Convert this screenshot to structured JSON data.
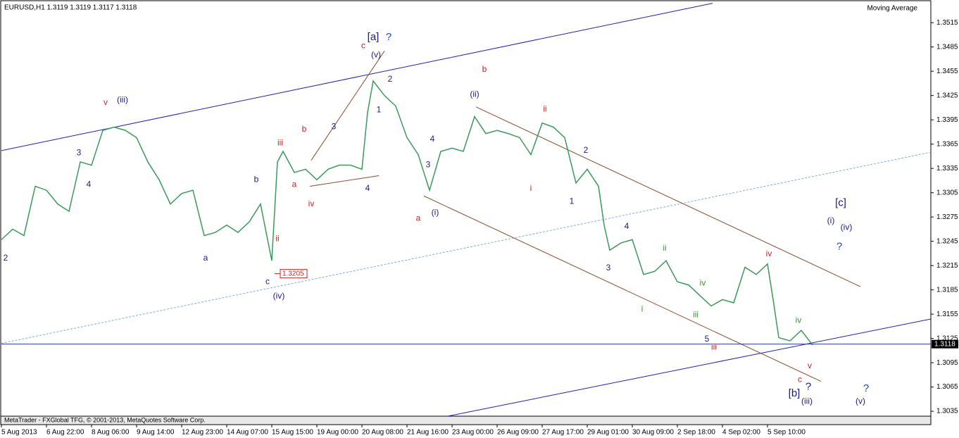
{
  "chart_data": {
    "type": "line",
    "title": "EURUSD,H1  1.3119 1.3119 1.3117 1.3118",
    "indicator": "Moving Average",
    "footer": "MetaTrader - FXGlobal TFG, © 2001-2013, MetaQuotes Software Corp.",
    "color": "#3a9a5a",
    "xlim": [
      0,
      660
    ],
    "ylim": [
      1.3029,
      1.3543
    ],
    "xticks": [
      {
        "value": 0,
        "label": "5 Aug 2013"
      },
      {
        "value": 32,
        "label": "6 Aug 22:00"
      },
      {
        "value": 64,
        "label": "8 Aug 06:00"
      },
      {
        "value": 96,
        "label": "9 Aug 14:00"
      },
      {
        "value": 128,
        "label": "12 Aug 23:00"
      },
      {
        "value": 160,
        "label": "14 Aug 07:00"
      },
      {
        "value": 192,
        "label": "15 Aug 15:00"
      },
      {
        "value": 224,
        "label": "19 Aug 00:00"
      },
      {
        "value": 256,
        "label": "20 Aug 08:00"
      },
      {
        "value": 288,
        "label": "21 Aug 16:00"
      },
      {
        "value": 320,
        "label": "23 Aug 00:00"
      },
      {
        "value": 352,
        "label": "26 Aug 09:00"
      },
      {
        "value": 384,
        "label": "27 Aug 17:00"
      },
      {
        "value": 416,
        "label": "29 Aug 01:00"
      },
      {
        "value": 448,
        "label": "30 Aug 09:00"
      },
      {
        "value": 480,
        "label": "2 Sep 18:00"
      },
      {
        "value": 512,
        "label": "4 Sep 02:00"
      },
      {
        "value": 544,
        "label": "5 Sep 10:00"
      }
    ],
    "yticks": [
      1.3515,
      1.3485,
      1.3455,
      1.3425,
      1.3395,
      1.3365,
      1.3335,
      1.3305,
      1.3275,
      1.3245,
      1.3215,
      1.3185,
      1.3155,
      1.3125,
      1.3095,
      1.3065,
      1.3035
    ],
    "x": [
      0,
      8,
      16,
      24,
      32,
      40,
      48,
      56,
      64,
      72,
      80,
      88,
      96,
      104,
      112,
      120,
      128,
      136,
      144,
      152,
      160,
      168,
      176,
      184,
      192,
      196,
      200,
      208,
      216,
      224,
      232,
      240,
      248,
      256,
      260,
      264,
      272,
      280,
      288,
      296,
      304,
      312,
      320,
      328,
      336,
      344,
      352,
      360,
      368,
      376,
      384,
      392,
      400,
      408,
      416,
      424,
      428,
      432,
      440,
      448,
      456,
      464,
      472,
      480,
      488,
      496,
      504,
      512,
      520,
      528,
      536,
      544,
      548,
      552,
      560,
      568,
      576
    ],
    "values": [
      1.3247,
      1.326,
      1.3252,
      1.3313,
      1.3308,
      1.3291,
      1.3282,
      1.3343,
      1.3339,
      1.3382,
      1.3386,
      1.3382,
      1.3373,
      1.3343,
      1.3321,
      1.3291,
      1.3304,
      1.3308,
      1.3252,
      1.3256,
      1.3265,
      1.3256,
      1.3269,
      1.3291,
      1.3221,
      1.3343,
      1.3356,
      1.333,
      1.3334,
      1.3321,
      1.3334,
      1.3339,
      1.3339,
      1.3334,
      1.3404,
      1.3443,
      1.3425,
      1.3412,
      1.3373,
      1.3352,
      1.3308,
      1.3356,
      1.336,
      1.3356,
      1.3399,
      1.3378,
      1.3382,
      1.3378,
      1.3373,
      1.3352,
      1.3391,
      1.3386,
      1.3373,
      1.3317,
      1.3334,
      1.3313,
      1.3265,
      1.3234,
      1.3243,
      1.3247,
      1.3204,
      1.3208,
      1.3221,
      1.3195,
      1.3191,
      1.3178,
      1.3165,
      1.3173,
      1.3169,
      1.3213,
      1.3204,
      1.3217,
      1.3173,
      1.3126,
      1.3122,
      1.3135,
      1.3117
    ],
    "last_price": 1.3118,
    "level_marker": {
      "x": 194,
      "value": 1.3205
    },
    "trendlines": [
      {
        "color": "#1f1fb4",
        "x": [
          0,
          505
        ],
        "y": [
          1.3357,
          1.3539
        ]
      },
      {
        "color": "#1f1fb4",
        "x": [
          317,
          660
        ],
        "y": [
          1.3029,
          1.3149
        ]
      },
      {
        "color": "#7aaee0",
        "x": [
          0,
          660
        ],
        "y": [
          1.3119,
          1.3355
        ]
      },
      {
        "color": "#8b4a2b",
        "x": [
          337,
          610
        ],
        "y": [
          1.3411,
          1.3189
        ]
      },
      {
        "color": "#8b4a2b",
        "x": [
          300,
          582
        ],
        "y": [
          1.3301,
          1.3072
        ]
      },
      {
        "color": "#8b4a2b",
        "x": [
          220,
          272
        ],
        "y": [
          1.3345,
          1.348
        ]
      },
      {
        "color": "#8b4a2b",
        "x": [
          219,
          268
        ],
        "y": [
          1.3313,
          1.3326
        ]
      }
    ],
    "annotations": [
      {
        "text": "[a]",
        "x": 264,
        "y": 1.3497,
        "color": "#1a1a8c"
      },
      {
        "text": "?",
        "x": 275,
        "y": 1.3497,
        "color": "#2244cc"
      },
      {
        "text": "c",
        "x": 257,
        "y": 1.3486,
        "color": "#cc2222"
      },
      {
        "text": "(v)",
        "x": 266,
        "y": 1.3475,
        "color": "#1a1a8c"
      },
      {
        "text": "b",
        "x": 343,
        "y": 1.3457,
        "color": "#cc2222"
      },
      {
        "text": "2",
        "x": 276,
        "y": 1.3445,
        "color": "#1a1a8c"
      },
      {
        "text": "1",
        "x": 268,
        "y": 1.3407,
        "color": "#1a1a8c"
      },
      {
        "text": "(ii)",
        "x": 336,
        "y": 1.3426,
        "color": "#1a1a8c"
      },
      {
        "text": "ii",
        "x": 386,
        "y": 1.3408,
        "color": "#cc2222"
      },
      {
        "text": "(iii)",
        "x": 86,
        "y": 1.3419,
        "color": "#1a1a8c"
      },
      {
        "text": "v",
        "x": 74,
        "y": 1.3416,
        "color": "#cc2222"
      },
      {
        "text": "3",
        "x": 55,
        "y": 1.3354,
        "color": "#1a1a8c"
      },
      {
        "text": "4",
        "x": 62,
        "y": 1.3315,
        "color": "#1a1a8c"
      },
      {
        "text": "2",
        "x": 3,
        "y": 1.3224,
        "color": "#1a1a8c"
      },
      {
        "text": "a",
        "x": 145,
        "y": 1.3224,
        "color": "#1a1a8c"
      },
      {
        "text": "b",
        "x": 181,
        "y": 1.3321,
        "color": "#1a1a8c"
      },
      {
        "text": "iii",
        "x": 198,
        "y": 1.3366,
        "color": "#cc2222"
      },
      {
        "text": "ii",
        "x": 196,
        "y": 1.3248,
        "color": "#cc2222"
      },
      {
        "text": "c",
        "x": 189,
        "y": 1.3195,
        "color": "#1a1a8c"
      },
      {
        "text": "(iv)",
        "x": 197,
        "y": 1.3177,
        "color": "#1a1a8c"
      },
      {
        "text": "b",
        "x": 215,
        "y": 1.3383,
        "color": "#cc2222"
      },
      {
        "text": "a",
        "x": 208,
        "y": 1.3315,
        "color": "#cc2222"
      },
      {
        "text": "iv",
        "x": 220,
        "y": 1.3291,
        "color": "#cc2222"
      },
      {
        "text": "3",
        "x": 236,
        "y": 1.3386,
        "color": "#1a1a8c"
      },
      {
        "text": "4",
        "x": 260,
        "y": 1.331,
        "color": "#1a1a8c"
      },
      {
        "text": "4",
        "x": 306,
        "y": 1.3371,
        "color": "#1a1a8c"
      },
      {
        "text": "3",
        "x": 303,
        "y": 1.3339,
        "color": "#1a1a8c"
      },
      {
        "text": "(i)",
        "x": 308,
        "y": 1.328,
        "color": "#1a1a8c"
      },
      {
        "text": "a",
        "x": 296,
        "y": 1.3273,
        "color": "#cc2222"
      },
      {
        "text": "i",
        "x": 376,
        "y": 1.331,
        "color": "#cc2222"
      },
      {
        "text": "2",
        "x": 415,
        "y": 1.3357,
        "color": "#1a1a8c"
      },
      {
        "text": "1",
        "x": 405,
        "y": 1.3294,
        "color": "#1a1a8c"
      },
      {
        "text": "4",
        "x": 444,
        "y": 1.3263,
        "color": "#1a1a8c"
      },
      {
        "text": "3",
        "x": 431,
        "y": 1.3212,
        "color": "#1a1a8c"
      },
      {
        "text": "ii",
        "x": 471,
        "y": 1.3236,
        "color": "#339933"
      },
      {
        "text": "i",
        "x": 455,
        "y": 1.3161,
        "color": "#339933"
      },
      {
        "text": "iv",
        "x": 498,
        "y": 1.3193,
        "color": "#339933"
      },
      {
        "text": "iii",
        "x": 493,
        "y": 1.3154,
        "color": "#339933"
      },
      {
        "text": "5",
        "x": 501,
        "y": 1.3124,
        "color": "#1a1a8c"
      },
      {
        "text": "iii",
        "x": 506,
        "y": 1.3114,
        "color": "#cc2222"
      },
      {
        "text": "iv",
        "x": 545,
        "y": 1.3229,
        "color": "#cc2222"
      },
      {
        "text": "iv",
        "x": 566,
        "y": 1.3147,
        "color": "#339933"
      },
      {
        "text": "v",
        "x": 574,
        "y": 1.3091,
        "color": "#cc2222"
      },
      {
        "text": "c",
        "x": 567,
        "y": 1.3074,
        "color": "#cc2222"
      },
      {
        "text": "[b]",
        "x": 563,
        "y": 1.3057,
        "color": "#1a1a8c"
      },
      {
        "text": "?",
        "x": 573,
        "y": 1.3065,
        "color": "#1a1a8c"
      },
      {
        "text": "(iii)",
        "x": 572,
        "y": 1.3047,
        "color": "#1a1a8c"
      },
      {
        "text": "[c]",
        "x": 596,
        "y": 1.3292,
        "color": "#1a1a8c"
      },
      {
        "text": "(i)",
        "x": 589,
        "y": 1.327,
        "color": "#1a1a8c"
      },
      {
        "text": "(iv)",
        "x": 600,
        "y": 1.3262,
        "color": "#1a1a8c"
      },
      {
        "text": "?",
        "x": 595,
        "y": 1.3238,
        "color": "#2244cc"
      },
      {
        "text": "?",
        "x": 614,
        "y": 1.3063,
        "color": "#2244cc"
      },
      {
        "text": "(v)",
        "x": 610,
        "y": 1.3047,
        "color": "#1a1a8c"
      }
    ]
  }
}
